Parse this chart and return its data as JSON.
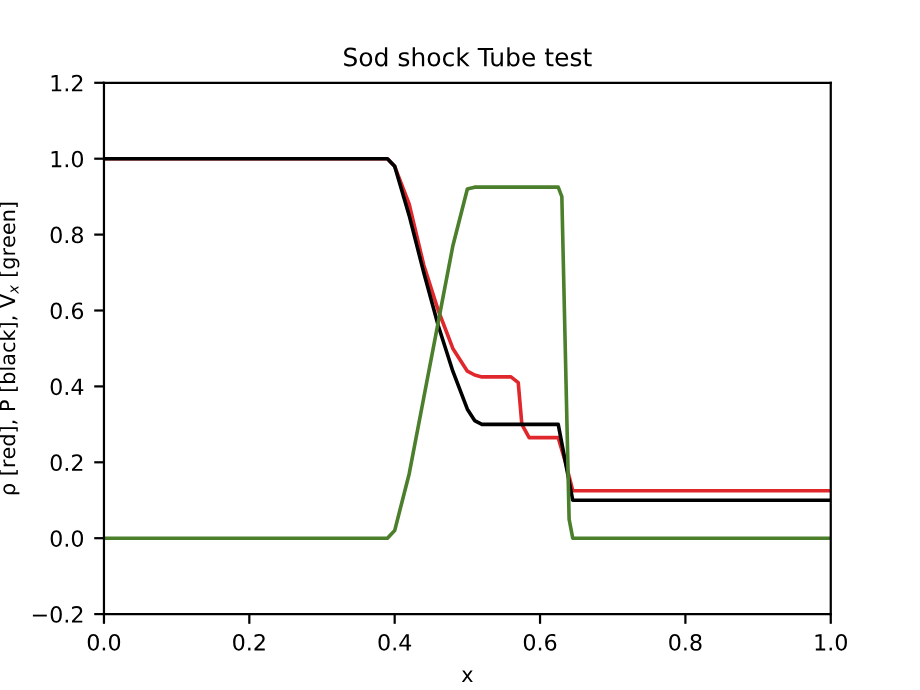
{
  "chart_data": {
    "type": "line",
    "title": "Sod shock Tube test",
    "xlabel": "x",
    "ylabel": "ρ [red], P [black], V$_{x}$ [green]",
    "xlim": [
      0.0,
      1.0
    ],
    "ylim": [
      -0.2,
      1.2
    ],
    "xticks": [
      {
        "value": 0.0,
        "label": "0.0"
      },
      0.2,
      0.4,
      0.6,
      0.8,
      {
        "value": 1.0,
        "label": "1.0"
      }
    ],
    "yticks": [
      {
        "value": -0.2,
        "label": "−0.2"
      },
      {
        "value": 0.0,
        "label": "0.0"
      },
      0.2,
      0.4,
      0.6,
      0.8,
      {
        "value": 1.0,
        "label": "1.0"
      },
      1.2
    ],
    "grid": false,
    "marker": "none",
    "line_style": "solid",
    "series": [
      {
        "color": "#e0282c",
        "x": [
          0.0,
          0.39,
          0.4,
          0.42,
          0.44,
          0.46,
          0.48,
          0.5,
          0.51,
          0.52,
          0.56,
          0.57,
          0.575,
          0.585,
          0.625,
          0.635,
          0.645,
          1.0
        ],
        "values": [
          1.0,
          1.0,
          0.98,
          0.88,
          0.72,
          0.6,
          0.5,
          0.44,
          0.43,
          0.425,
          0.425,
          0.41,
          0.3,
          0.265,
          0.265,
          0.2,
          0.125,
          0.125
        ]
      },
      {
        "color": "#000000",
        "x": [
          0.0,
          0.39,
          0.4,
          0.42,
          0.44,
          0.46,
          0.48,
          0.5,
          0.51,
          0.52,
          0.625,
          0.635,
          0.645,
          1.0
        ],
        "values": [
          1.0,
          1.0,
          0.98,
          0.85,
          0.7,
          0.56,
          0.44,
          0.34,
          0.31,
          0.3,
          0.3,
          0.2,
          0.1,
          0.1
        ]
      },
      {
        "color": "#4b7f2b",
        "x": [
          0.0,
          0.39,
          0.4,
          0.42,
          0.44,
          0.46,
          0.48,
          0.5,
          0.51,
          0.625,
          0.63,
          0.64,
          0.645,
          1.0
        ],
        "values": [
          0.0,
          0.0,
          0.02,
          0.17,
          0.37,
          0.57,
          0.77,
          0.92,
          0.925,
          0.925,
          0.9,
          0.05,
          0.0,
          0.0
        ]
      }
    ]
  }
}
